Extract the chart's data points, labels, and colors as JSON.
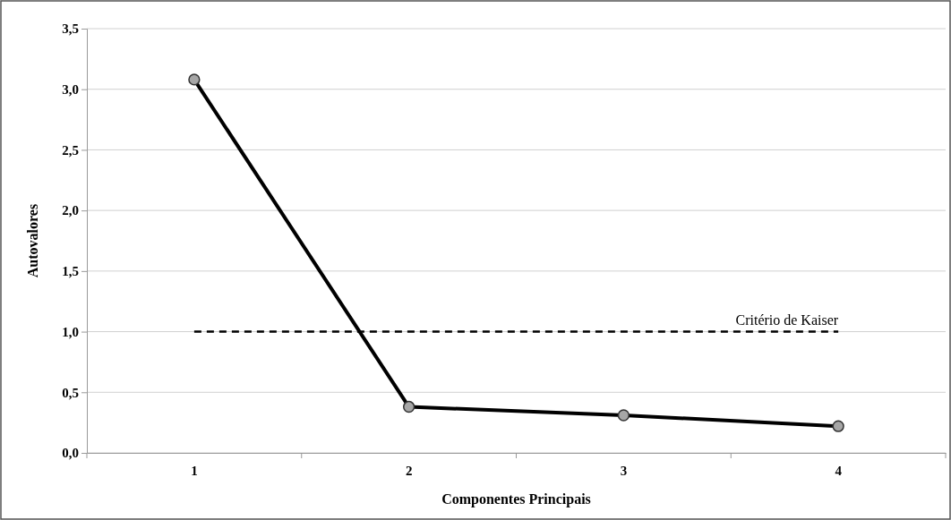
{
  "chart_data": {
    "type": "line",
    "xlabel": "Componentes Principais",
    "ylabel": "Autovalores",
    "categories": [
      "1",
      "2",
      "3",
      "4"
    ],
    "series": [
      {
        "color": "#000000",
        "values": [
          3.08,
          0.38,
          0.31,
          0.22
        ]
      }
    ],
    "marker": "circle",
    "line_style": "solid",
    "ylim": [
      0,
      3.5
    ],
    "yticks": [
      {
        "value": 0,
        "label": "0,0"
      },
      {
        "value": 0.5,
        "label": "0,5"
      },
      {
        "value": 1,
        "label": "1,0"
      },
      {
        "value": 1.5,
        "label": "1,5"
      },
      {
        "value": 2,
        "label": "2,0"
      },
      {
        "value": 2.5,
        "label": "2,5"
      },
      {
        "value": 3,
        "label": "3,0"
      },
      {
        "value": 3.5,
        "label": "3,5"
      }
    ],
    "grid": "y",
    "ref_lines": [
      {
        "axis": "y",
        "value": 1,
        "label": "Critério de Kaiser",
        "color": "#000000",
        "line_style": "dashed"
      }
    ]
  }
}
